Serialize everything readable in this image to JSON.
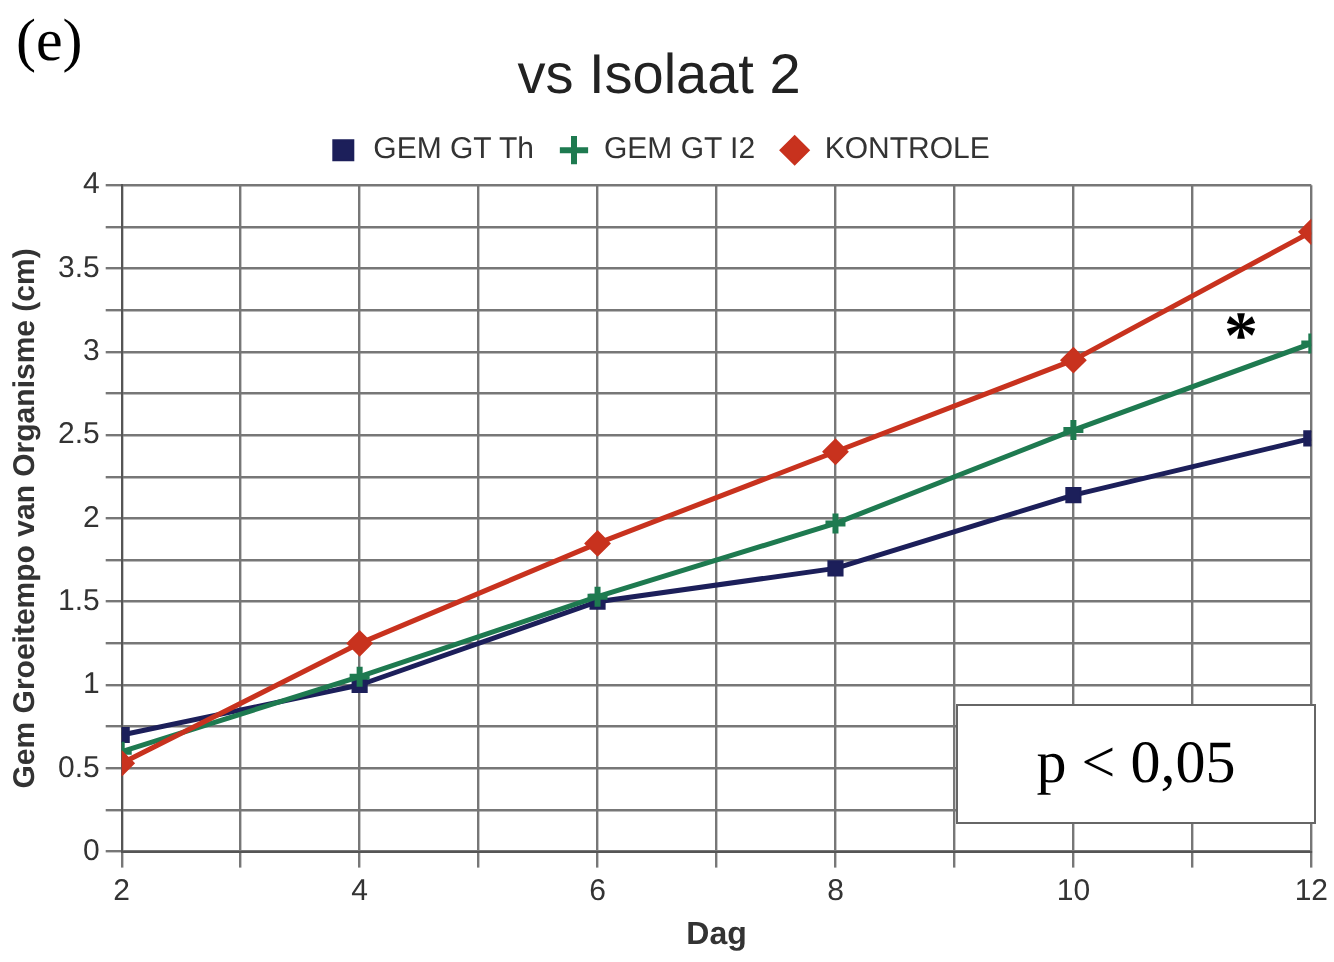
{
  "chart_data": {
    "type": "line",
    "title": "vs Isolaat 2",
    "xlabel": "Dag",
    "ylabel": "Gem Groeitempo van Organisme (cm)",
    "x": [
      2,
      4,
      6,
      8,
      10,
      12
    ],
    "series": [
      {
        "name": "GEM GT Th",
        "color": "#1c1f5a",
        "marker": "square",
        "values": [
          0.7,
          1.0,
          1.5,
          1.7,
          2.14,
          2.48
        ]
      },
      {
        "name": "GEM GT I2",
        "color": "#1e7a50",
        "marker": "cross",
        "values": [
          0.6,
          1.05,
          1.53,
          1.97,
          2.53,
          3.05
        ]
      },
      {
        "name": "KONTROLE",
        "color": "#c8321e",
        "marker": "diamond",
        "values": [
          0.53,
          1.25,
          1.85,
          2.4,
          2.95,
          3.72
        ]
      }
    ],
    "xlim": [
      2,
      12
    ],
    "xticks": [
      2,
      {
        "value": 3,
        "label": null
      },
      4,
      {
        "value": 5,
        "label": null
      },
      6,
      {
        "value": 7,
        "label": null
      },
      8,
      {
        "value": 9,
        "label": null
      },
      10,
      {
        "value": 11,
        "label": null
      },
      12
    ],
    "ylim": [
      0,
      4
    ],
    "yticks": [
      0,
      {
        "value": 0.25,
        "label": null
      },
      0.5,
      {
        "value": 0.75,
        "label": null
      },
      1,
      {
        "value": 1.25,
        "label": null
      },
      1.5,
      {
        "value": 1.75,
        "label": null
      },
      2,
      {
        "value": 2.25,
        "label": null
      },
      2.5,
      {
        "value": 2.75,
        "label": null
      },
      3,
      {
        "value": 3.25,
        "label": null
      },
      3.5,
      {
        "value": 3.75,
        "label": null
      },
      4
    ],
    "grid": true,
    "legend": "top",
    "line_style": "solid",
    "annotations": [
      "(e)",
      "*",
      "p < 0,05"
    ]
  }
}
